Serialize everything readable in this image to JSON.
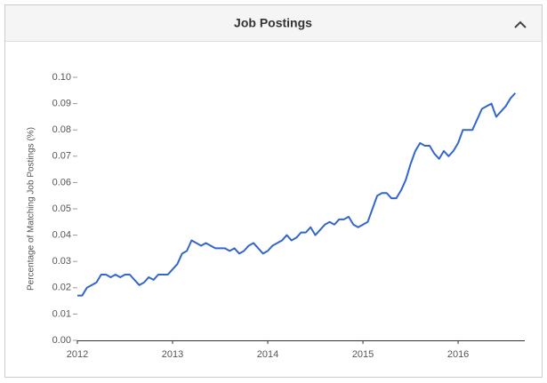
{
  "chart_data": {
    "type": "line",
    "title": "Job Postings",
    "ylabel": "Percentage of Matching Job Postings (%)",
    "x": [
      2012.0,
      2012.05,
      2012.1,
      2012.15,
      2012.2,
      2012.25,
      2012.3,
      2012.35,
      2012.4,
      2012.45,
      2012.5,
      2012.55,
      2012.6,
      2012.65,
      2012.7,
      2012.75,
      2012.8,
      2012.85,
      2012.9,
      2012.95,
      2013.0,
      2013.05,
      2013.1,
      2013.15,
      2013.2,
      2013.25,
      2013.3,
      2013.35,
      2013.4,
      2013.45,
      2013.5,
      2013.55,
      2013.6,
      2013.65,
      2013.7,
      2013.75,
      2013.8,
      2013.85,
      2013.9,
      2013.95,
      2014.0,
      2014.05,
      2014.1,
      2014.15,
      2014.2,
      2014.25,
      2014.3,
      2014.35,
      2014.4,
      2014.45,
      2014.5,
      2014.55,
      2014.6,
      2014.65,
      2014.7,
      2014.75,
      2014.8,
      2014.85,
      2014.9,
      2014.95,
      2015.0,
      2015.05,
      2015.1,
      2015.15,
      2015.2,
      2015.25,
      2015.3,
      2015.35,
      2015.4,
      2015.45,
      2015.5,
      2015.55,
      2015.6,
      2015.65,
      2015.7,
      2015.75,
      2015.8,
      2015.85,
      2015.9,
      2015.95,
      2016.0,
      2016.05,
      2016.1,
      2016.15,
      2016.2,
      2016.25,
      2016.3,
      2016.35,
      2016.4,
      2016.45,
      2016.5,
      2016.55,
      2016.6
    ],
    "series": [
      {
        "name": "Job Postings",
        "color": "#3366cc",
        "values": [
          0.017,
          0.017,
          0.02,
          0.021,
          0.022,
          0.025,
          0.025,
          0.024,
          0.025,
          0.024,
          0.025,
          0.025,
          0.023,
          0.021,
          0.022,
          0.024,
          0.023,
          0.025,
          0.025,
          0.025,
          0.027,
          0.029,
          0.033,
          0.034,
          0.038,
          0.037,
          0.036,
          0.037,
          0.036,
          0.035,
          0.035,
          0.035,
          0.034,
          0.035,
          0.033,
          0.034,
          0.036,
          0.037,
          0.035,
          0.033,
          0.034,
          0.036,
          0.037,
          0.038,
          0.04,
          0.038,
          0.039,
          0.041,
          0.041,
          0.043,
          0.04,
          0.042,
          0.044,
          0.045,
          0.044,
          0.046,
          0.046,
          0.047,
          0.044,
          0.043,
          0.044,
          0.045,
          0.05,
          0.055,
          0.056,
          0.056,
          0.054,
          0.054,
          0.057,
          0.061,
          0.067,
          0.072,
          0.075,
          0.074,
          0.074,
          0.071,
          0.069,
          0.072,
          0.07,
          0.072,
          0.075,
          0.08,
          0.08,
          0.08,
          0.084,
          0.088,
          0.089,
          0.09,
          0.085,
          0.087,
          0.089,
          0.092,
          0.094
        ]
      }
    ],
    "xlim": [
      2012,
      2016.7
    ],
    "xticks": [
      2012,
      2013,
      2014,
      2015,
      2016
    ],
    "ylim": [
      0,
      0.1
    ],
    "yticks": [
      {
        "value": 0,
        "label": "0.00"
      },
      {
        "value": 0.01,
        "label": "0.01"
      },
      {
        "value": 0.02,
        "label": "0.02"
      },
      {
        "value": 0.03,
        "label": "0.03"
      },
      {
        "value": 0.04,
        "label": "0.04"
      },
      {
        "value": 0.05,
        "label": "0.05"
      },
      {
        "value": 0.06,
        "label": "0.06"
      },
      {
        "value": 0.07,
        "label": "0.07"
      },
      {
        "value": 0.08,
        "label": "0.08"
      },
      {
        "value": 0.09,
        "label": "0.09"
      },
      {
        "value": 0.1,
        "label": "0.10"
      }
    ],
    "grid": false
  }
}
